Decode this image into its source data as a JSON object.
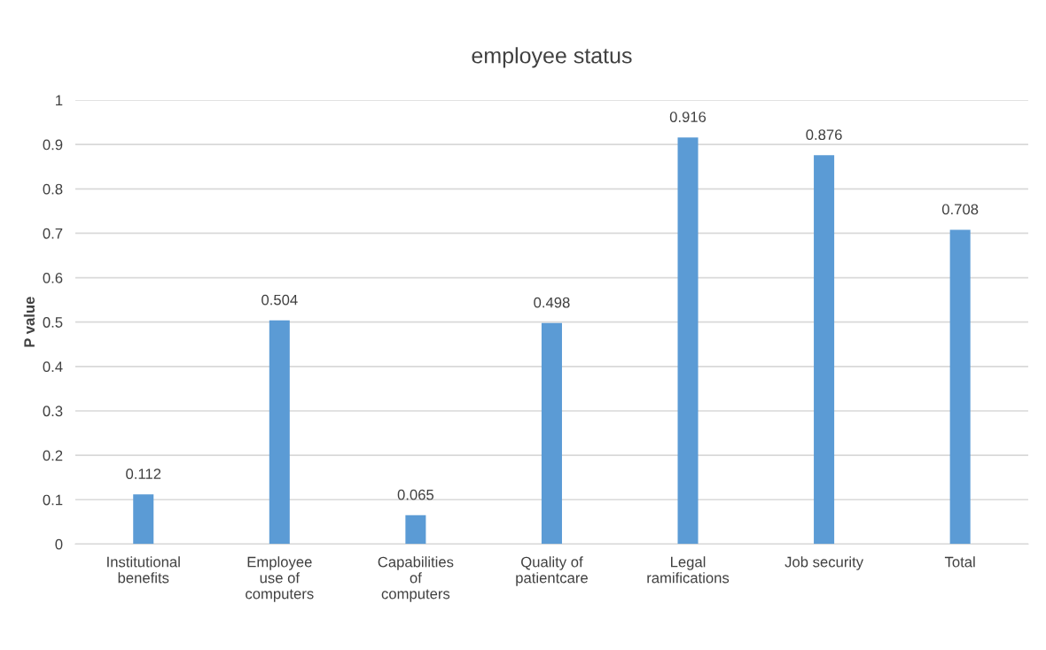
{
  "chart_data": {
    "type": "bar",
    "title": "employee status",
    "ylabel": "P value",
    "categories": [
      "Institutional\nbenefits",
      "Employee\nuse of\ncomputers",
      "Capabilities\nof\ncomputers",
      "Quality of\npatientcare",
      "Legal\nramifications",
      "Job security",
      "Total"
    ],
    "values": [
      0.112,
      0.504,
      0.065,
      0.498,
      0.916,
      0.876,
      0.708
    ],
    "color": "#5b9bd5",
    "ylim": [
      0,
      1
    ],
    "yticks": [
      0,
      0.1,
      0.2,
      0.3,
      0.4,
      0.5,
      0.6,
      0.7,
      0.8,
      0.9,
      1
    ],
    "grid": "y",
    "data_labels": true
  }
}
